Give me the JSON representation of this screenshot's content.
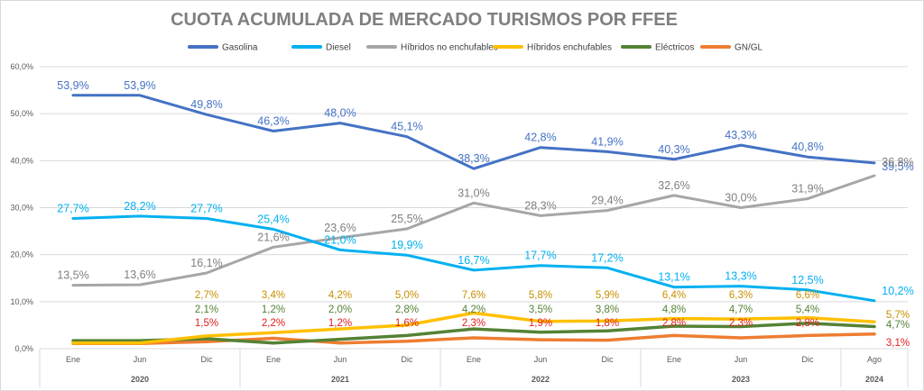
{
  "chart_data": {
    "type": "line",
    "title": "CUOTA ACUMULADA DE MERCADO TURISMOS POR FFEE",
    "xlabel": "",
    "ylabel": "",
    "ylim": [
      0,
      60
    ],
    "yticks": [
      "0,0%",
      "10,0%",
      "20,0%",
      "30,0%",
      "40,0%",
      "50,0%",
      "60,0%"
    ],
    "categories": [
      "Ene",
      "Jun",
      "Dic",
      "Ene",
      "Jun",
      "Dic",
      "Ene",
      "Jun",
      "Dic",
      "Ene",
      "Jun",
      "Dic",
      "Ago"
    ],
    "years": [
      {
        "label": "2020",
        "span": [
          0,
          2
        ]
      },
      {
        "label": "2021",
        "span": [
          3,
          5
        ]
      },
      {
        "label": "2022",
        "span": [
          6,
          8
        ]
      },
      {
        "label": "2023",
        "span": [
          9,
          11
        ]
      },
      {
        "label": "2024",
        "span": [
          12,
          12
        ]
      }
    ],
    "legend_position": "top",
    "grid": true,
    "series": [
      {
        "name": "Gasolina",
        "color": "#4472c4",
        "values": [
          53.9,
          53.9,
          49.8,
          46.3,
          48.0,
          45.1,
          38.3,
          42.8,
          41.9,
          40.3,
          43.3,
          40.8,
          39.5
        ],
        "labels": [
          "53,9%",
          "53,9%",
          "49,8%",
          "46,3%",
          "48,0%",
          "45,1%",
          "38,3%",
          "42,8%",
          "41,9%",
          "40,3%",
          "43,3%",
          "40,8%",
          "39,5%"
        ]
      },
      {
        "name": "Diesel",
        "color": "#00b0f0",
        "values": [
          27.7,
          28.2,
          27.7,
          25.4,
          21.0,
          19.9,
          16.7,
          17.7,
          17.2,
          13.1,
          13.3,
          12.5,
          10.2
        ],
        "labels": [
          "27,7%",
          "28,2%",
          "27,7%",
          "25,4%",
          "21,0%",
          "19,9%",
          "16,7%",
          "17,7%",
          "17,2%",
          "13,1%",
          "13,3%",
          "12,5%",
          "10,2%"
        ]
      },
      {
        "name": "Híbridos no enchufables",
        "color": "#a6a6a6",
        "values": [
          13.5,
          13.6,
          16.1,
          21.6,
          23.6,
          25.5,
          31.0,
          28.3,
          29.4,
          32.6,
          30.0,
          31.9,
          36.8
        ],
        "labels": [
          "13,5%",
          "13,6%",
          "16,1%",
          "21,6%",
          "23,6%",
          "25,5%",
          "31,0%",
          "28,3%",
          "29,4%",
          "32,6%",
          "30,0%",
          "31,9%",
          "36,8%"
        ]
      },
      {
        "name": "Híbridos enchufables",
        "color": "#ffc000",
        "values": [
          null,
          null,
          2.7,
          3.4,
          4.2,
          5.0,
          7.6,
          5.8,
          5.9,
          6.4,
          6.3,
          6.6,
          5.7
        ],
        "labels": [
          "",
          "",
          "2,7%",
          "3,4%",
          "4,2%",
          "5,0%",
          "7,6%",
          "5,8%",
          "5,9%",
          "6,4%",
          "6,3%",
          "6,6%",
          "5,7%"
        ]
      },
      {
        "name": "Eléctricos",
        "color": "#548235",
        "values": [
          null,
          null,
          2.1,
          1.2,
          2.0,
          2.8,
          4.2,
          3.5,
          3.8,
          4.8,
          4.7,
          5.4,
          4.7
        ],
        "labels": [
          "",
          "",
          "2,1%",
          "1,2%",
          "2,0%",
          "2,8%",
          "4,2%",
          "3,5%",
          "3,8%",
          "4,8%",
          "4,7%",
          "5,4%",
          "4,7%"
        ]
      },
      {
        "name": "GN/GL",
        "color": "#ed7d31",
        "values": [
          null,
          null,
          1.5,
          2.2,
          1.2,
          1.6,
          2.3,
          1.9,
          1.8,
          2.8,
          2.3,
          2.8,
          3.1
        ],
        "labels": [
          "",
          "",
          "1,5%",
          "2,2%",
          "1,2%",
          "1,6%",
          "2,3%",
          "1,9%",
          "1,8%",
          "2,8%",
          "2,3%",
          "2,8%",
          "3,1%"
        ]
      }
    ]
  }
}
